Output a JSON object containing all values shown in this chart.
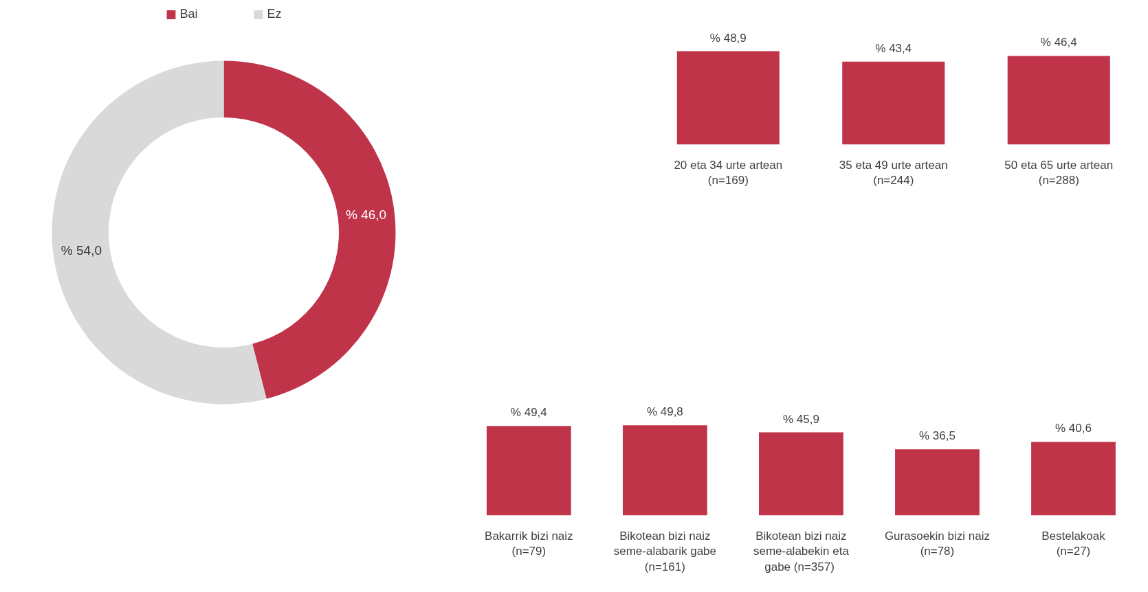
{
  "chart_data": [
    {
      "type": "donut",
      "categories": [
        "Bai",
        "Ez"
      ],
      "values": [
        46.0,
        54.0
      ],
      "colors": [
        "#c0344a",
        "#d9d9d9"
      ],
      "value_labels": [
        "% 46,0",
        "% 54,0"
      ],
      "legend": "top"
    },
    {
      "type": "bar",
      "categories": [
        "20 eta 34 urte artean\n(n=169)",
        "35 eta 49 urte artean\n(n=244)",
        "50 eta 65 urte artean\n(n=288)"
      ],
      "values": [
        48.9,
        43.4,
        46.4
      ],
      "color": "#c0344a",
      "value_labels": [
        "% 48,9",
        "% 43,4",
        "% 46,4"
      ],
      "tick_labels": "x"
    },
    {
      "type": "bar",
      "categories": [
        "Bakarrik bizi naiz\n(n=79)",
        "Bikotean bizi naiz\nseme-alabarik gabe\n(n=161)",
        "Bikotean bizi naiz\nseme-alabekin eta\ngabe  (n=357)",
        "Gurasoekin bizi naiz\n(n=78)",
        "Bestelakoak\n(n=27)"
      ],
      "values": [
        49.4,
        49.8,
        45.9,
        36.5,
        40.6
      ],
      "color": "#c0344a",
      "value_labels": [
        "% 49,4",
        "% 49,8",
        "% 45,9",
        "% 36,5",
        "% 40,6"
      ],
      "tick_labels": "x"
    }
  ]
}
